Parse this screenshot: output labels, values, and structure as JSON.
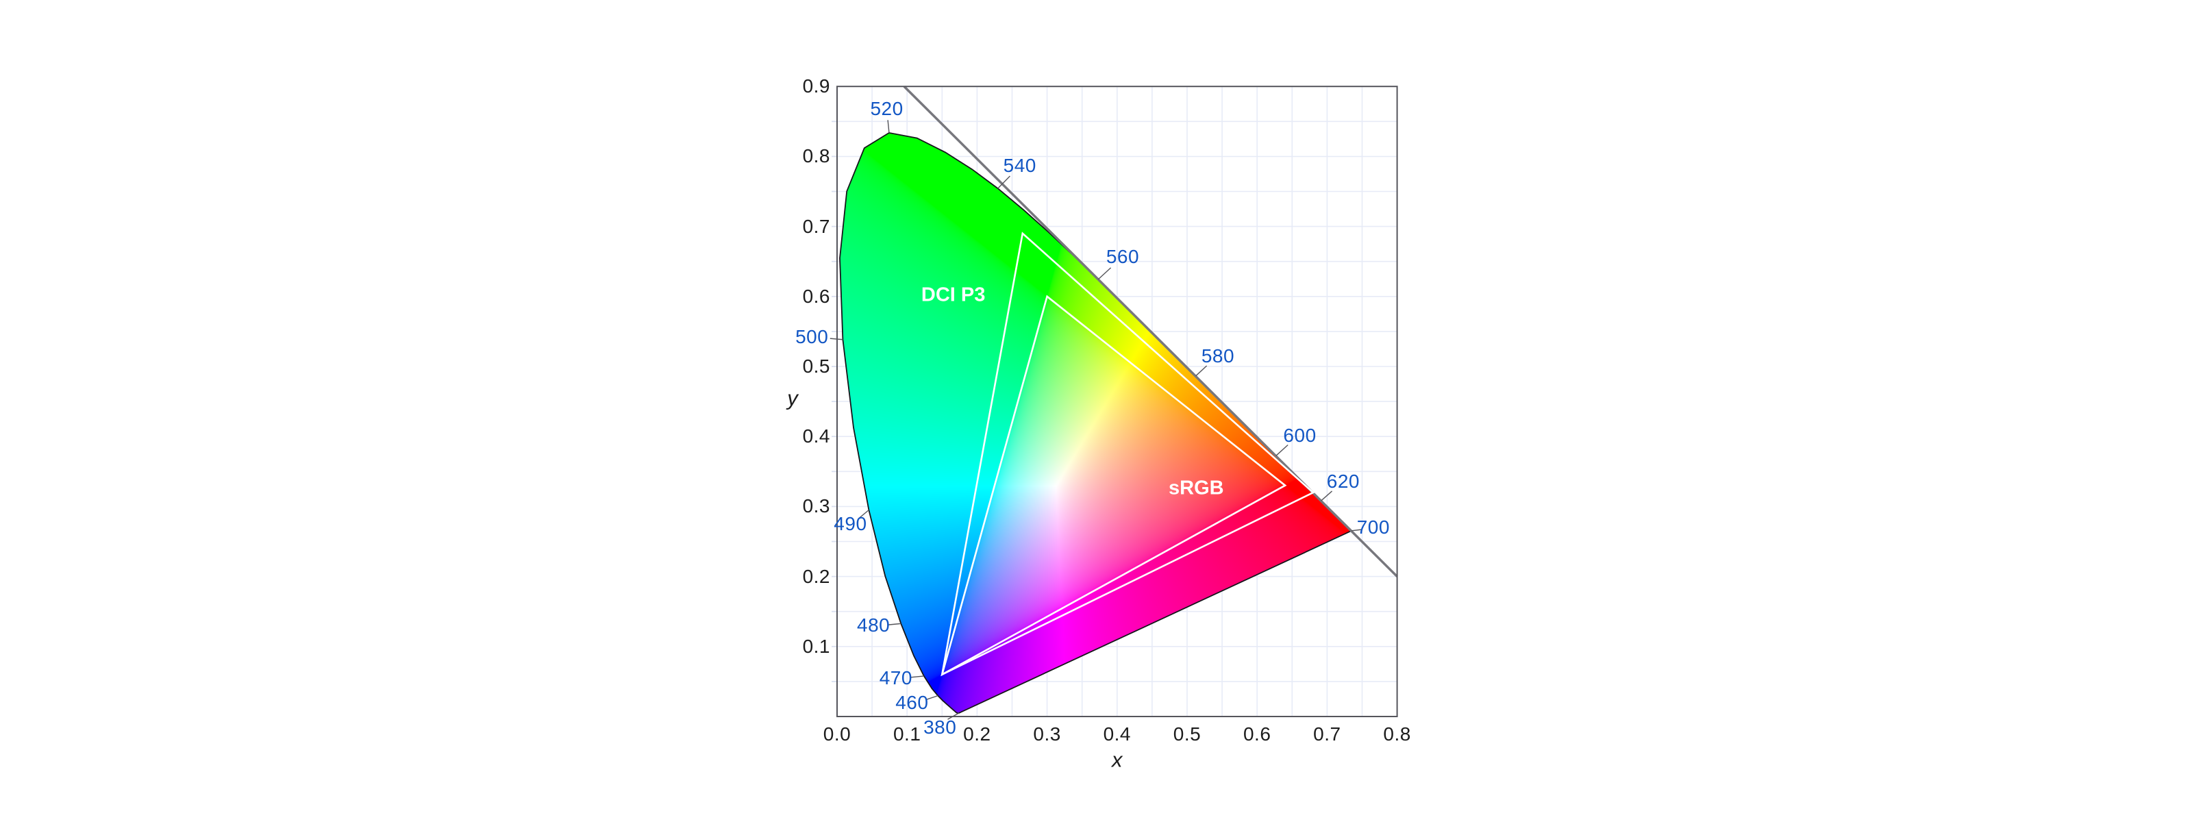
{
  "figure": {
    "background": "#ffffff"
  },
  "axes": {
    "xlabel": "x",
    "ylabel": "y",
    "x_ticks": [
      "0.0",
      "0.1",
      "0.2",
      "0.3",
      "0.4",
      "0.5",
      "0.6",
      "0.7",
      "0.8"
    ],
    "y_ticks": [
      "0.1",
      "0.2",
      "0.3",
      "0.4",
      "0.5",
      "0.6",
      "0.7",
      "0.8",
      "0.9"
    ]
  },
  "colors": {
    "background": "#ffffff",
    "wavelength_label_blue": "#1256c4",
    "axis_label_black": "#1c1c1c",
    "frame_gray": "#55555c",
    "grid_lavender": "#e7ebf7",
    "tick_stub": "#d9dff0",
    "tangent_line_gray": "#77777d",
    "locus_outline": "#15151a",
    "callout_tick": "#55555a",
    "gamut_outline": "#ffffff",
    "gamut_label": "#ffffff"
  },
  "chart_data": {
    "type": "area",
    "subtype": "cie-1931-xy-chromaticity-diagram",
    "xlabel": "x",
    "ylabel": "y",
    "xlim": [
      0.0,
      0.8
    ],
    "ylim": [
      0.0,
      0.9
    ],
    "grid": {
      "on": true,
      "step": 0.05,
      "position": "under"
    },
    "white_point": [
      0.3127,
      0.329
    ],
    "spectral_locus_xy": [
      [
        380,
        0.1741,
        0.005
      ],
      [
        390,
        0.1738,
        0.0049
      ],
      [
        400,
        0.1733,
        0.0048
      ],
      [
        410,
        0.1726,
        0.0048
      ],
      [
        420,
        0.1714,
        0.0051
      ],
      [
        425,
        0.1703,
        0.0058
      ],
      [
        430,
        0.1689,
        0.0069
      ],
      [
        435,
        0.1669,
        0.0086
      ],
      [
        440,
        0.1644,
        0.0109
      ],
      [
        445,
        0.1611,
        0.0138
      ],
      [
        450,
        0.1566,
        0.0177
      ],
      [
        455,
        0.151,
        0.0227
      ],
      [
        460,
        0.144,
        0.0297
      ],
      [
        465,
        0.1355,
        0.0399
      ],
      [
        470,
        0.1241,
        0.0578
      ],
      [
        475,
        0.1096,
        0.0868
      ],
      [
        480,
        0.0913,
        0.1327
      ],
      [
        485,
        0.0687,
        0.2007
      ],
      [
        490,
        0.0454,
        0.295
      ],
      [
        495,
        0.0235,
        0.4127
      ],
      [
        500,
        0.0082,
        0.5384
      ],
      [
        505,
        0.0039,
        0.6548
      ],
      [
        510,
        0.0139,
        0.7502
      ],
      [
        515,
        0.0389,
        0.812
      ],
      [
        520,
        0.0743,
        0.8338
      ],
      [
        525,
        0.1142,
        0.8262
      ],
      [
        530,
        0.1547,
        0.8059
      ],
      [
        535,
        0.1929,
        0.7816
      ],
      [
        540,
        0.2296,
        0.7543
      ],
      [
        545,
        0.2658,
        0.7243
      ],
      [
        550,
        0.3016,
        0.6923
      ],
      [
        555,
        0.3373,
        0.6589
      ],
      [
        560,
        0.3731,
        0.6245
      ],
      [
        565,
        0.4087,
        0.5896
      ],
      [
        570,
        0.4441,
        0.5547
      ],
      [
        575,
        0.4788,
        0.5202
      ],
      [
        580,
        0.5125,
        0.4866
      ],
      [
        585,
        0.5448,
        0.4544
      ],
      [
        590,
        0.5752,
        0.4242
      ],
      [
        595,
        0.6029,
        0.3965
      ],
      [
        600,
        0.627,
        0.3725
      ],
      [
        605,
        0.6482,
        0.3514
      ],
      [
        610,
        0.6658,
        0.334
      ],
      [
        615,
        0.6801,
        0.3197
      ],
      [
        620,
        0.6915,
        0.3083
      ],
      [
        630,
        0.7079,
        0.292
      ],
      [
        640,
        0.719,
        0.2809
      ],
      [
        650,
        0.726,
        0.274
      ],
      [
        660,
        0.73,
        0.27
      ],
      [
        680,
        0.7334,
        0.2666
      ],
      [
        700,
        0.7347,
        0.2653
      ]
    ],
    "wavelength_callouts": [
      {
        "wl": "380",
        "label": [
          0.147,
          -0.016
        ],
        "anchor": [
          0.1741,
          0.005
        ],
        "tick_end": [
          0.158,
          -0.004
        ]
      },
      {
        "wl": "460",
        "label": [
          0.107,
          0.02
        ],
        "anchor": [
          0.144,
          0.0297
        ],
        "tick_end": [
          0.127,
          0.024
        ]
      },
      {
        "wl": "470",
        "label": [
          0.084,
          0.055
        ],
        "anchor": [
          0.1241,
          0.0578
        ],
        "tick_end": [
          0.105,
          0.056
        ]
      },
      {
        "wl": "480",
        "label": [
          0.052,
          0.13
        ],
        "anchor": [
          0.0913,
          0.1327
        ],
        "tick_end": [
          0.073,
          0.131
        ]
      },
      {
        "wl": "490",
        "label": [
          0.019,
          0.275
        ],
        "anchor": [
          0.0454,
          0.295
        ],
        "tick_end": [
          0.031,
          0.283
        ]
      },
      {
        "wl": "500",
        "label": [
          -0.036,
          0.542
        ],
        "anchor": [
          0.0082,
          0.5384
        ],
        "tick_end": [
          -0.01,
          0.54
        ]
      },
      {
        "wl": "520",
        "label": [
          0.071,
          0.868
        ],
        "anchor": [
          0.0743,
          0.8338
        ],
        "tick_end": [
          0.0725,
          0.852
        ]
      },
      {
        "wl": "540",
        "label": [
          0.261,
          0.787
        ],
        "anchor": [
          0.2296,
          0.7543
        ],
        "tick_end": [
          0.247,
          0.772
        ]
      },
      {
        "wl": "560",
        "label": [
          0.408,
          0.657
        ],
        "anchor": [
          0.3731,
          0.6245
        ],
        "tick_end": [
          0.391,
          0.641
        ]
      },
      {
        "wl": "580",
        "label": [
          0.544,
          0.515
        ],
        "anchor": [
          0.5125,
          0.4866
        ],
        "tick_end": [
          0.528,
          0.501
        ]
      },
      {
        "wl": "600",
        "label": [
          0.661,
          0.401
        ],
        "anchor": [
          0.627,
          0.3725
        ],
        "tick_end": [
          0.644,
          0.388
        ]
      },
      {
        "wl": "620",
        "label": [
          0.723,
          0.336
        ],
        "anchor": [
          0.6915,
          0.3083
        ],
        "tick_end": [
          0.707,
          0.322
        ]
      },
      {
        "wl": "700",
        "label": [
          0.766,
          0.27
        ],
        "anchor": [
          0.7347,
          0.2653
        ],
        "tick_end": [
          0.749,
          0.267
        ]
      }
    ],
    "gamuts": [
      {
        "name": "sRGB",
        "label": [
          0.513,
          0.326
        ],
        "primaries": {
          "red": [
            0.64,
            0.33
          ],
          "green": [
            0.3,
            0.6
          ],
          "blue": [
            0.15,
            0.06
          ]
        }
      },
      {
        "name": "DCI P3",
        "label": [
          0.166,
          0.602
        ],
        "primaries": {
          "red": [
            0.68,
            0.32
          ],
          "green": [
            0.265,
            0.69
          ],
          "blue": [
            0.15,
            0.06
          ]
        }
      }
    ],
    "tangent_line": {
      "from": [
        0.0958,
        0.9
      ],
      "to": [
        0.8,
        0.2
      ]
    }
  }
}
